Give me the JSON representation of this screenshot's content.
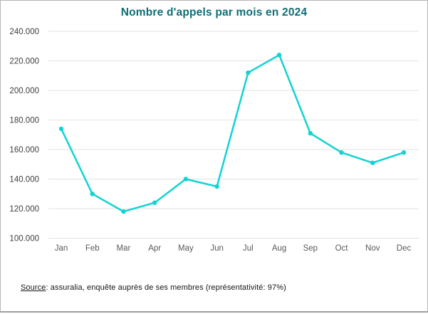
{
  "title": "Nombre d'appels par mois en 2024",
  "source": {
    "label": "Source",
    "text": ": assuralia, enquête auprès de ses membres (représentativité: 97%)"
  },
  "colors": {
    "title": "#0d6e74",
    "line": "#12d3d3",
    "grid": "#e2e2e2",
    "y_axis_text": "#3d3d3d",
    "x_axis_text": "#595959",
    "border": "#b5b5b5"
  },
  "chart_data": {
    "type": "line",
    "title": "Nombre d'appels par mois en 2024",
    "categories": [
      "Jan",
      "Feb",
      "Mar",
      "Apr",
      "May",
      "Jun",
      "Jul",
      "Aug",
      "Sep",
      "Oct",
      "Nov",
      "Dec"
    ],
    "series": [
      {
        "name": "Nombre d'appels",
        "values": [
          174000,
          130000,
          118000,
          124000,
          140000,
          135000,
          212000,
          224000,
          171000,
          158000,
          151000,
          158000
        ]
      }
    ],
    "xlabel": "",
    "ylabel": "",
    "ylim": [
      100000,
      240000
    ],
    "ytick_step": 20000,
    "ytick_labels": [
      "240.000",
      "220.000",
      "200.000",
      "180.000",
      "160.000",
      "140.000",
      "120.000",
      "100.000"
    ],
    "grid": true,
    "legend_position": "none",
    "marker": "circle"
  }
}
